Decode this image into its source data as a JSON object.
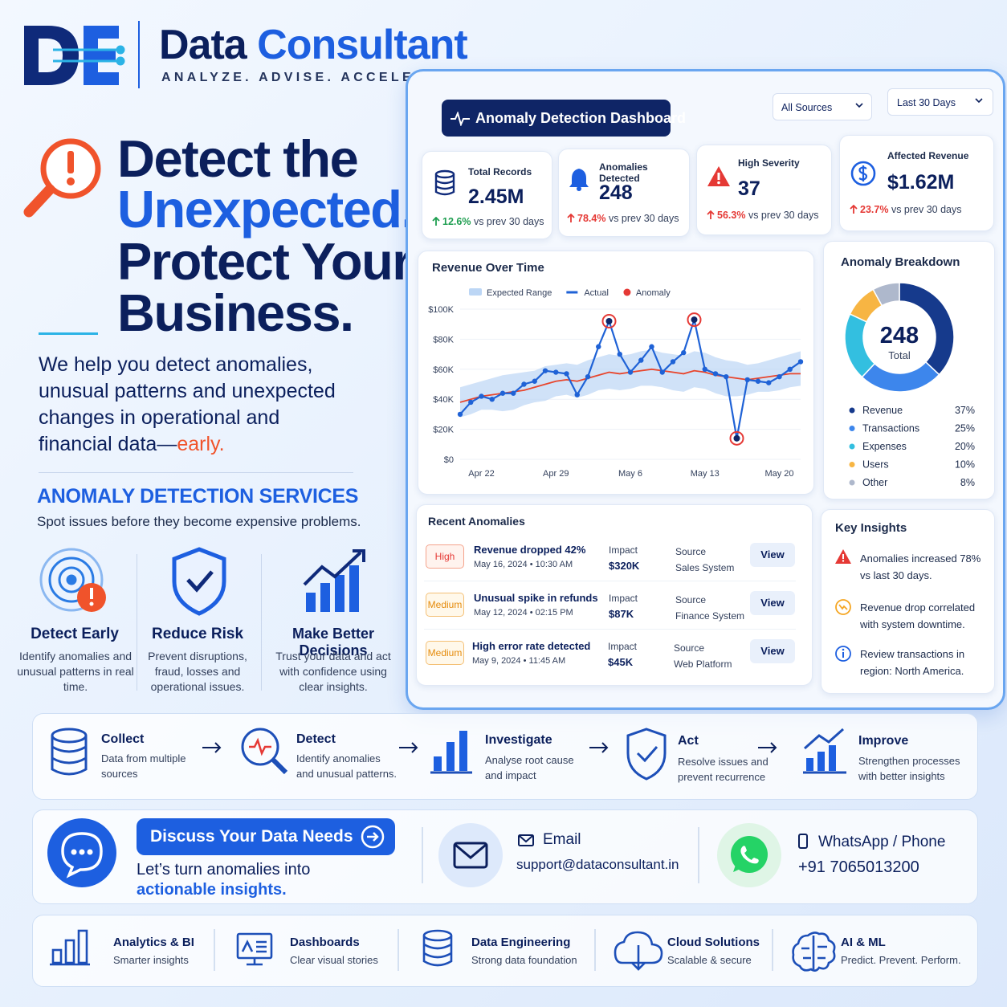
{
  "brand": {
    "name_part1": "Data",
    "name_part2": "Consultant",
    "tagline": "ANALYZE. ADVISE. ACCELERATE."
  },
  "hero": {
    "line1": "Detect the",
    "line2": "Unexpected.",
    "line3": "Protect Your",
    "line4": "Business.",
    "body": "We help you detect anomalies, unusual patterns and unexpected changes in operational and financial data—",
    "body_emphasis": "early."
  },
  "services": {
    "title": "ANOMALY DETECTION SERVICES",
    "subtitle": "Spot issues before they become expensive problems.",
    "items": [
      {
        "title": "Detect Early",
        "text": "Identify anomalies and unusual patterns in real time."
      },
      {
        "title": "Reduce Risk",
        "text": "Prevent disruptions, fraud, losses and operational issues."
      },
      {
        "title": "Make Better Decisions",
        "text": "Trust your data and act with confidence using clear insights."
      }
    ]
  },
  "dashboard": {
    "title": "Anomaly Detection Dashboard",
    "filters": [
      "All Sources",
      "Last 30 Days"
    ],
    "kpis": [
      {
        "label": "Total Records",
        "value": "2.45M",
        "change": "12.6%",
        "note": "vs prev 30 days"
      },
      {
        "label": "Anomalies Detected",
        "value": "248",
        "change": "78.4%",
        "note": "vs prev 30 days"
      },
      {
        "label": "High Severity",
        "value": "37",
        "change": "56.3%",
        "note": "vs prev 30 days"
      },
      {
        "label": "Affected Revenue",
        "value": "$1.62M",
        "change": "23.7%",
        "note": "vs prev 30 days"
      }
    ],
    "revenue_chart": {
      "type": "line",
      "title": "Revenue Over Time",
      "categories": [
        null,
        null,
        "Apr 22",
        null,
        null,
        null,
        null,
        null,
        null,
        "Apr 29",
        null,
        null,
        null,
        null,
        null,
        null,
        "May 6",
        null,
        null,
        null,
        null,
        null,
        null,
        "May 13",
        null,
        null,
        null,
        null,
        null,
        null,
        "May 20",
        null,
        null
      ],
      "ylim": [
        0,
        100000
      ],
      "yticks": [
        {
          "value": 0,
          "label": "$0"
        },
        {
          "value": 20000,
          "label": "$20K"
        },
        {
          "value": 40000,
          "label": "$40K"
        },
        {
          "value": 60000,
          "label": "$60K"
        },
        {
          "value": 80000,
          "label": "$80K"
        },
        {
          "value": 100000,
          "label": "$100K"
        }
      ],
      "series": [
        {
          "name": "Expected Range",
          "style": "area",
          "color": "#bcd6f5",
          "low": [
            28000,
            30000,
            33000,
            33000,
            32000,
            33000,
            36000,
            38000,
            39000,
            42000,
            43000,
            41000,
            43000,
            46000,
            47000,
            46000,
            47000,
            49000,
            49000,
            48000,
            46000,
            45000,
            48000,
            47000,
            44000,
            42000,
            42000,
            43000,
            45000,
            45000,
            46000,
            48000,
            49000
          ],
          "high": [
            48000,
            50000,
            52000,
            54000,
            56000,
            57000,
            58000,
            59000,
            62000,
            63000,
            64000,
            63000,
            66000,
            68000,
            70000,
            69000,
            70000,
            72000,
            73000,
            71000,
            70000,
            69000,
            72000,
            71000,
            68000,
            66000,
            65000,
            63000,
            64000,
            66000,
            68000,
            70000,
            72000
          ]
        },
        {
          "name": "Actual",
          "style": "line",
          "color": "#1f62d6",
          "values": [
            30000,
            38000,
            42000,
            40000,
            44000,
            44000,
            50000,
            52000,
            59000,
            58000,
            57000,
            43000,
            55000,
            75000,
            92000,
            70000,
            58000,
            66000,
            75000,
            58000,
            65000,
            71000,
            93000,
            60000,
            57000,
            55000,
            14000,
            53000,
            52000,
            51000,
            55000,
            60000,
            65000
          ]
        },
        {
          "name": "Anomaly",
          "style": "markers",
          "color": "#e53935",
          "values": [
            null,
            null,
            null,
            null,
            null,
            null,
            null,
            null,
            null,
            null,
            null,
            null,
            null,
            null,
            92000,
            null,
            null,
            null,
            null,
            null,
            null,
            null,
            93000,
            null,
            null,
            null,
            14000,
            null,
            null,
            null,
            null,
            null,
            null
          ]
        },
        {
          "style": "line",
          "color": "#e8452c",
          "values": [
            38000,
            40000,
            42000,
            43000,
            44000,
            45000,
            46000,
            48000,
            50000,
            52000,
            53000,
            52000,
            54000,
            56000,
            58000,
            57000,
            58000,
            59000,
            60000,
            59000,
            58000,
            57000,
            59000,
            58000,
            56000,
            55000,
            54000,
            53000,
            54000,
            55000,
            56000,
            57000,
            57000
          ]
        }
      ]
    },
    "breakdown": {
      "type": "donut",
      "title": "Anomaly Breakdown",
      "total": "248",
      "total_label": "Total",
      "categories": [
        "Revenue",
        "Transactions",
        "Expenses",
        "Users",
        "Other"
      ],
      "values": [
        37,
        25,
        20,
        10,
        8
      ],
      "value_labels": [
        "37%",
        "25%",
        "20%",
        "10%",
        "8%"
      ],
      "colors": [
        "#163a8c",
        "#3d86ec",
        "#33bfe0",
        "#f7b543",
        "#aeb8cc"
      ]
    },
    "recent": {
      "title": "Recent Anomalies",
      "rows": [
        {
          "severity": "High",
          "title": "Revenue dropped 42%",
          "date": "May 16, 2024",
          "time": "10:30 AM",
          "impact_label": "Impact",
          "impact": "$320K",
          "source_label": "Source",
          "source": "Sales System",
          "action": "View"
        },
        {
          "severity": "Medium",
          "title": "Unusual spike in refunds",
          "date": "May 12, 2024",
          "time": "02:15 PM",
          "impact_label": "Impact",
          "impact": "$87K",
          "source_label": "Source",
          "source": "Finance System",
          "action": "View"
        },
        {
          "severity": "Medium",
          "title": "High error rate detected",
          "date": "May 9, 2024",
          "time": "11:45 AM",
          "impact_label": "Impact",
          "impact": "$45K",
          "source_label": "Source",
          "source": "Web Platform",
          "action": "View"
        }
      ]
    },
    "insights": {
      "title": "Key Insights",
      "items": [
        "Anomalies increased 78% vs last 30 days.",
        "Revenue drop correlated with system downtime.",
        "Review transactions in region: North America."
      ]
    }
  },
  "process": [
    {
      "title": "Collect",
      "text": "Data from multiple sources"
    },
    {
      "title": "Detect",
      "text": "Identify anomalies and unusual patterns."
    },
    {
      "title": "Investigate",
      "text": "Analyse root cause and impact"
    },
    {
      "title": "Act",
      "text": "Resolve issues and prevent recurrence"
    },
    {
      "title": "Improve",
      "text": "Strengthen processes with better insights"
    }
  ],
  "cta": {
    "button": "Discuss Your Data Needs",
    "text1": "Let’s turn anomalies into",
    "text2": "actionable insights.",
    "email_label": "Email",
    "email": "support@dataconsultant.in",
    "phone_label": "WhatsApp / Phone",
    "phone": "+91 7065013200"
  },
  "footer": [
    {
      "title": "Analytics & BI",
      "text": "Smarter insights"
    },
    {
      "title": "Dashboards",
      "text": "Clear visual stories"
    },
    {
      "title": "Data Engineering",
      "text": "Strong data foundation"
    },
    {
      "title": "Cloud Solutions",
      "text": "Scalable & secure"
    },
    {
      "title": "AI & ML",
      "text": "Predict. Prevent. Perform."
    }
  ]
}
